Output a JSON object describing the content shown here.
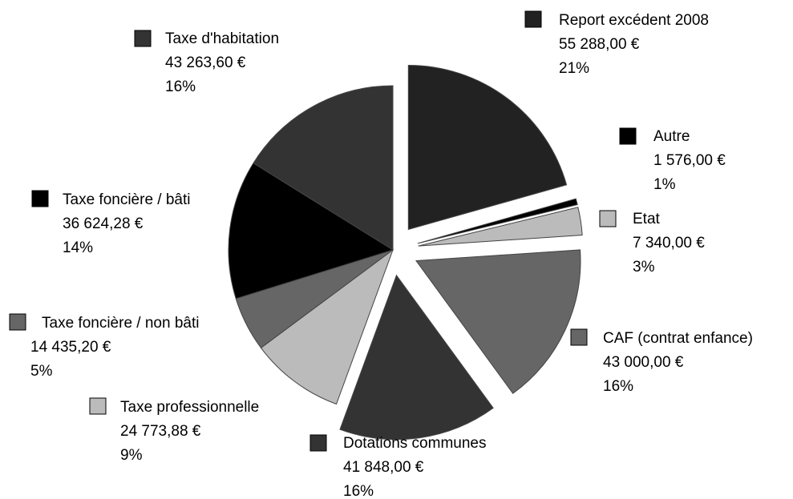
{
  "chart_data": {
    "type": "pie",
    "categories": [
      "Report excédent 2008",
      "Autre",
      "Etat",
      "CAF (contrat enfance)",
      "Dotations communes",
      "Taxe professionnelle",
      "Taxe foncière / non bâti",
      "Taxe foncière / bâti",
      "Taxe d'habitation"
    ],
    "values": [
      55288.0,
      1576.0,
      7340.0,
      43000.0,
      41848.0,
      24773.88,
      14435.2,
      36624.28,
      43263.6
    ],
    "value_labels": [
      "55 288,00 €",
      "1 576,00 €",
      "7 340,00 €",
      "43 000,00 €",
      "41 848,00 €",
      "24 773,88 €",
      "14 435,20 €",
      "36 624,28 €",
      "43 263,60 €"
    ],
    "percent_labels": [
      "21%",
      "1%",
      "3%",
      "16%",
      "16%",
      "9%",
      "5%",
      "14%",
      "16%"
    ],
    "colors": [
      "#222222",
      "#000000",
      "#bbbbbb",
      "#666666",
      "#333333",
      "#bbbbbb",
      "#666666",
      "#000000",
      "#333333"
    ],
    "explode": [
      true,
      true,
      true,
      true,
      true,
      false,
      false,
      false,
      false
    ]
  }
}
